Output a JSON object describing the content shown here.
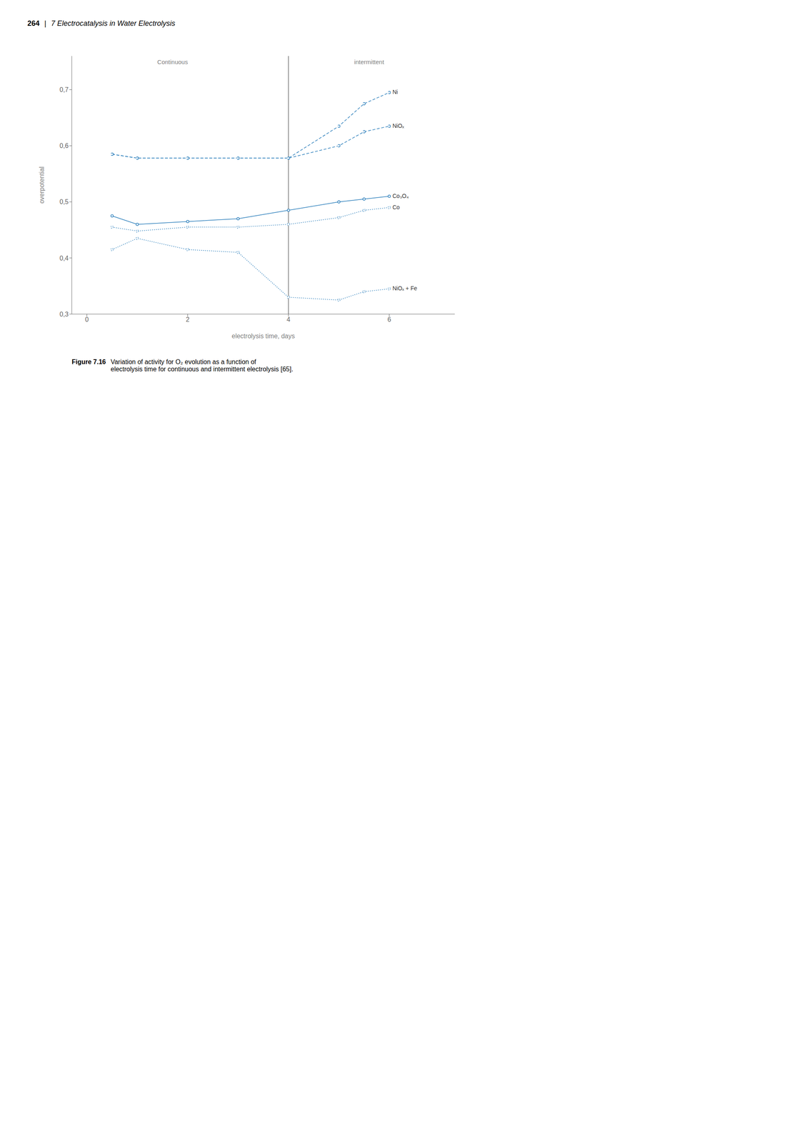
{
  "chart_data": {
    "type": "line",
    "header": [
      "264",
      "|",
      "7 Electrocatalysis in Water Electrolysis"
    ],
    "caption": [
      "Figure 7.16",
      "Variation of activity for O₂ evolution as a function of\nelectrolysis time for continuous and intermittent electrolysis [65]."
    ],
    "x_label": "electrolysis time, days",
    "y_label": "overpotential",
    "xlim": [
      -0.3,
      7.3
    ],
    "ylim": [
      0.3,
      0.76
    ],
    "xticks": [
      0,
      2,
      4,
      6
    ],
    "yticks": [
      {
        "value": 0.3,
        "label": "0,3"
      },
      {
        "value": 0.4,
        "label": "0,4"
      },
      {
        "value": 0.5,
        "label": "0,5"
      },
      {
        "value": 0.6,
        "label": "0,6"
      },
      {
        "value": 0.7,
        "label": "0,7"
      }
    ],
    "vline": 4.0,
    "annotations": [
      {
        "text": "Continuous",
        "x": 1.7,
        "y": 0.742
      },
      {
        "text": "intermittent",
        "x": 5.6,
        "y": 0.742
      }
    ],
    "grid": false,
    "x": [
      0.5,
      1.0,
      2.0,
      3.0,
      4.0,
      5.0,
      5.5,
      6.0
    ],
    "series": [
      {
        "name": "Ni",
        "line_style": "dashed",
        "marker": "circle",
        "values": [
          0.585,
          0.578,
          0.578,
          0.578,
          0.578,
          0.635,
          0.675,
          0.695
        ]
      },
      {
        "name": "NiOₓ",
        "line_style": "dashed",
        "marker": "circle",
        "values": [
          0.585,
          0.578,
          0.578,
          0.578,
          0.578,
          0.6,
          0.625,
          0.635
        ]
      },
      {
        "name": "Co₃O₄",
        "line_style": "solid",
        "marker": "circle",
        "values": [
          0.475,
          0.46,
          0.465,
          0.47,
          0.485,
          0.5,
          0.505,
          0.51
        ]
      },
      {
        "name": "Co",
        "line_style": "dotted",
        "marker": "circle",
        "values": [
          0.455,
          0.448,
          0.455,
          0.455,
          0.46,
          0.472,
          0.485,
          0.49
        ]
      },
      {
        "name": "NiOₓ + Fe",
        "line_style": "dotted",
        "marker": "circle",
        "values": [
          0.415,
          0.435,
          0.415,
          0.41,
          0.33,
          0.325,
          0.34,
          0.345
        ]
      }
    ]
  }
}
